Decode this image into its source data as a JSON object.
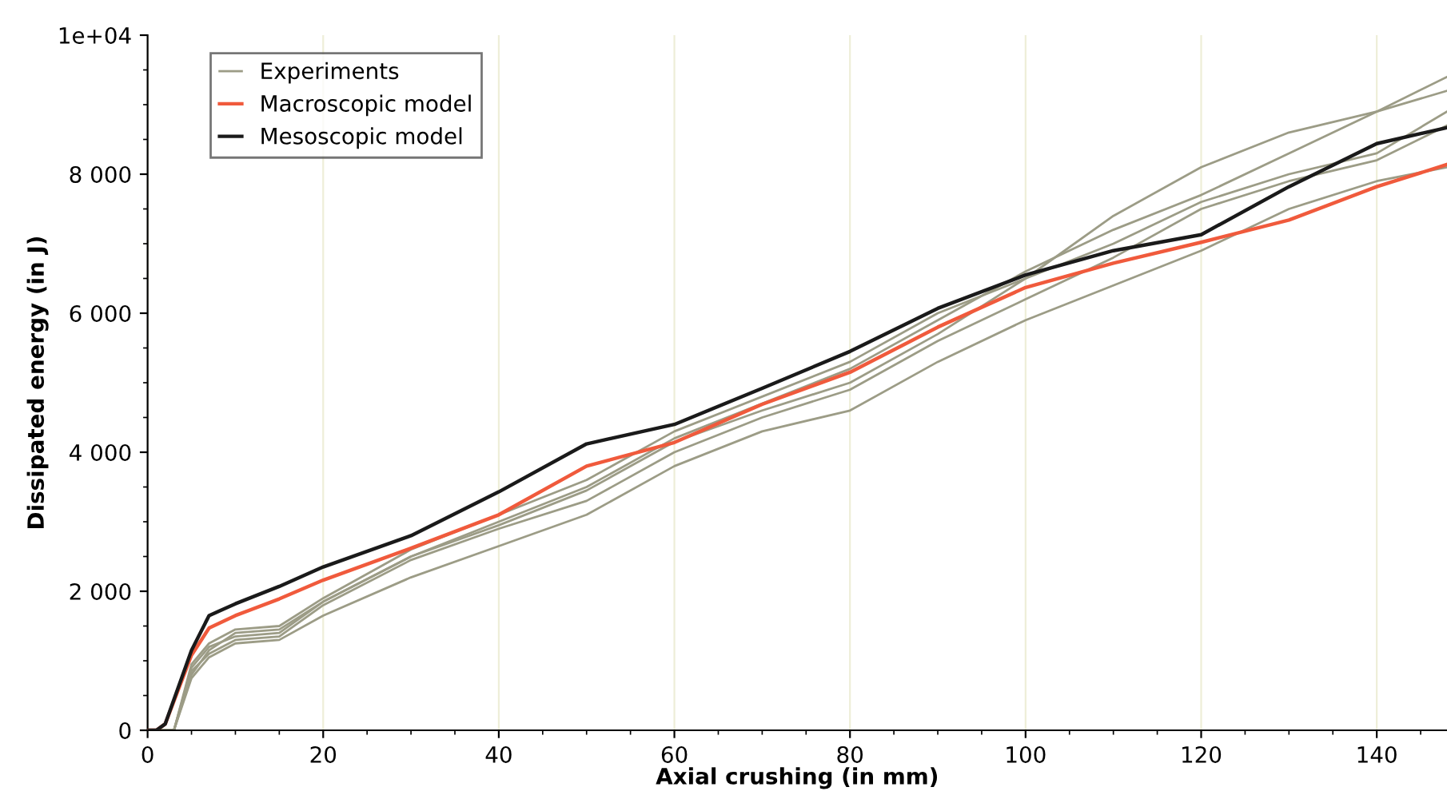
{
  "chart_data": {
    "type": "line",
    "xlabel": "Axial crushing (in mm)",
    "ylabel": "Dissipated energy (in J)",
    "x": [
      0,
      3,
      5,
      7,
      10,
      15,
      20,
      30,
      40,
      50,
      60,
      70,
      80,
      90,
      100,
      110,
      120,
      130,
      140,
      148
    ],
    "series": [
      {
        "name": "Experiments",
        "color": "#9c9c86",
        "values": [
          0,
          0,
          800,
          1150,
          1400,
          1450,
          1850,
          2500,
          2950,
          3450,
          4150,
          4600,
          5000,
          5700,
          6500,
          7400,
          8100,
          8600,
          8900,
          9400
        ]
      },
      {
        "color": "#9c9c86",
        "values": [
          0,
          0,
          900,
          1200,
          1350,
          1400,
          1850,
          2500,
          3000,
          3500,
          4200,
          4700,
          5200,
          5900,
          6600,
          7200,
          7700,
          8300,
          8900,
          9200
        ]
      },
      {
        "color": "#9c9c86",
        "values": [
          0,
          0,
          950,
          1250,
          1450,
          1500,
          1900,
          2600,
          3100,
          3600,
          4300,
          4800,
          5300,
          6000,
          6500,
          7000,
          7600,
          8000,
          8300,
          8900
        ]
      },
      {
        "color": "#9c9c86",
        "values": [
          0,
          0,
          850,
          1100,
          1300,
          1350,
          1800,
          2450,
          2900,
          3300,
          4000,
          4500,
          4900,
          5600,
          6200,
          6800,
          7500,
          7900,
          8200,
          8700
        ]
      },
      {
        "color": "#9c9c86",
        "values": [
          0,
          0,
          750,
          1050,
          1250,
          1300,
          1650,
          2200,
          2650,
          3100,
          3800,
          4300,
          4600,
          5300,
          5900,
          6400,
          6900,
          7500,
          7900,
          8100
        ]
      },
      {
        "name": "Macroscopic model",
        "color": "#f05a3c",
        "x": [
          0,
          1,
          2,
          5,
          7,
          10,
          15,
          20,
          30,
          40,
          50,
          60,
          70,
          80,
          90,
          100,
          110,
          120,
          130,
          140,
          148
        ],
        "values": [
          0,
          0,
          90,
          1080,
          1470,
          1650,
          1890,
          2160,
          2620,
          3100,
          3800,
          4140,
          4690,
          5150,
          5800,
          6370,
          6720,
          7020,
          7340,
          7820,
          8140
        ]
      },
      {
        "name": "Mesoscopic model",
        "color": "#1a1a1a",
        "x": [
          0,
          1,
          2,
          5,
          7,
          10,
          15,
          20,
          30,
          40,
          50,
          60,
          70,
          80,
          90,
          100,
          110,
          120,
          130,
          140,
          148
        ],
        "values": [
          0,
          0,
          90,
          1150,
          1650,
          1820,
          2070,
          2350,
          2800,
          3430,
          4120,
          4400,
          4920,
          5450,
          6070,
          6550,
          6900,
          7130,
          7820,
          8440,
          8670
        ]
      }
    ],
    "xlim": [
      0,
      148
    ],
    "xticks": [
      0,
      20,
      40,
      60,
      80,
      100,
      120,
      140
    ],
    "ylim": [
      0,
      10000
    ],
    "yticks": [
      0,
      {
        "value": 2000,
        "label": "2 000"
      },
      {
        "value": 4000,
        "label": "4 000"
      },
      {
        "value": 6000,
        "label": "6 000"
      },
      {
        "value": 8000,
        "label": "8 000"
      },
      {
        "value": 10000,
        "label": "1e+04"
      }
    ],
    "grid": "x",
    "legend": "top left",
    "marker": "none",
    "line_style": "solid"
  }
}
